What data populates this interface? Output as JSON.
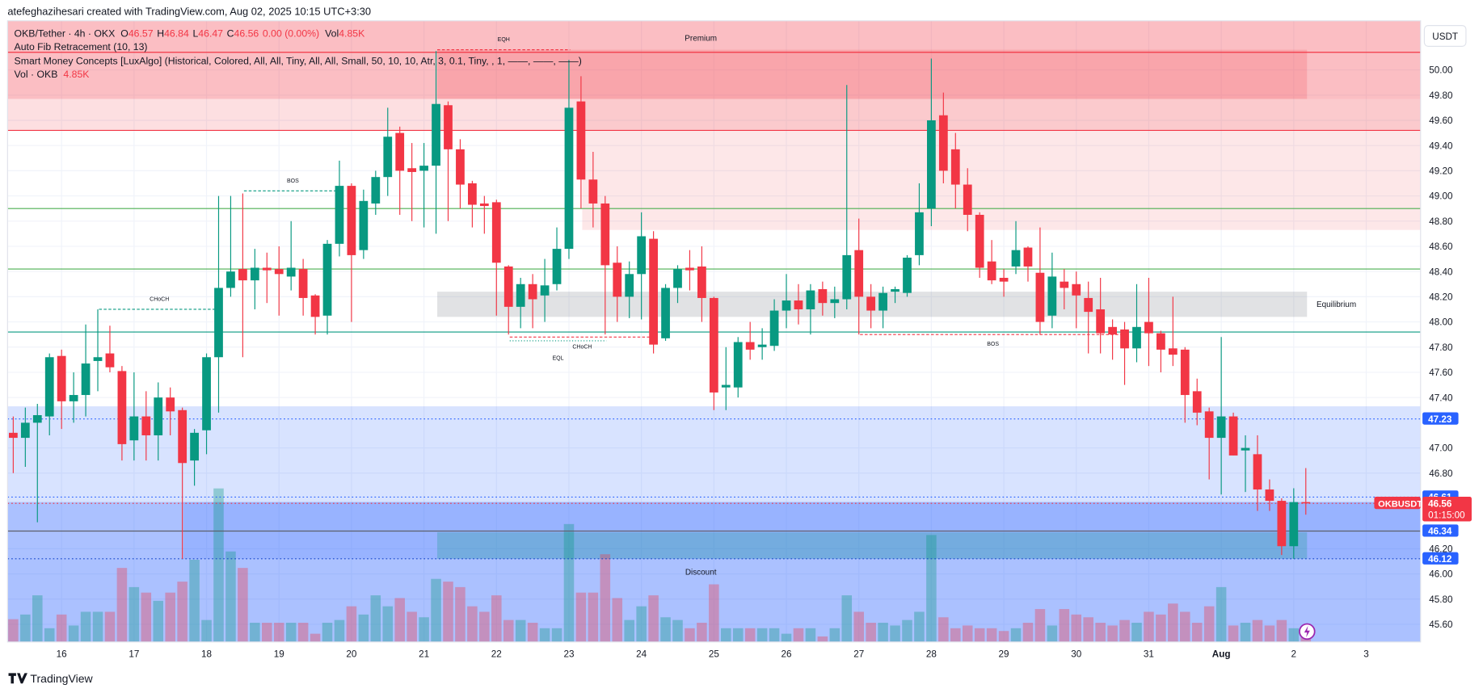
{
  "page": {
    "credit": "atefeghazihesari created with TradingView.com, Aug 02, 2025 10:15 UTC+3:30",
    "symbol": "OKB/Tether · 4h · OKX",
    "o": "O",
    "h": "H",
    "l": "L",
    "c": "C",
    "change": "0.00 (0.00%)",
    "vol": "Vol",
    "vol_value": "4.85K",
    "fib": "Auto Fib Retracement (10, 13)",
    "smc": "Smart Money Concepts [LuxAlgo] (Historical, Colored, All, All, Tiny, All, All, Small, 50, 10, 10, Atr, 3, 0.1, Tiny, , 1, ——, ——, ——)",
    "vol_indicator": "Vol · OKB",
    "currency": "USDT",
    "brand": "TradingView"
  },
  "chart_data": {
    "type": "candlestick",
    "up_color": "#089981",
    "down_color": "#f23645",
    "open": [
      47.12,
      47.08,
      47.2,
      47.25,
      47.73,
      47.37,
      47.42,
      47.69,
      47.75,
      47.61,
      47.06,
      47.25,
      47.1,
      47.4,
      47.3,
      46.9,
      47.14,
      47.72,
      48.27,
      48.42,
      48.33,
      48.43,
      48.42,
      48.36,
      48.42,
      48.21,
      48.05,
      48.62,
      49.08,
      48.57,
      48.94,
      49.15,
      49.5,
      49.22,
      49.2,
      49.24,
      49.72,
      49.37,
      49.1,
      48.94,
      48.95,
      48.44,
      48.12,
      48.3,
      48.21,
      48.3,
      48.58,
      49.75,
      49.13,
      48.94,
      48.47,
      48.2,
      48.38,
      48.66,
      47.87,
      48.27,
      48.43,
      48.44,
      48.19,
      47.48,
      47.48,
      47.84,
      47.8,
      47.81,
      48.09,
      48.17,
      48.1,
      48.26,
      48.15,
      48.18,
      48.57,
      48.2,
      48.09,
      48.24,
      48.23,
      48.53,
      48.9,
      49.64,
      49.37,
      49.09,
      48.85,
      48.48,
      48.35,
      48.44,
      48.59,
      48.39,
      48.05,
      48.32,
      48.3,
      48.19,
      48.1,
      47.96,
      47.94,
      47.79,
      48.0,
      47.91,
      47.79,
      47.78,
      47.45,
      47.29,
      47.08,
      47.25,
      46.98,
      46.95,
      46.67,
      46.58,
      46.22,
      46.57
    ],
    "high": [
      47.25,
      47.32,
      47.35,
      47.75,
      47.78,
      47.6,
      47.98,
      48.1,
      47.97,
      47.65,
      47.6,
      47.45,
      47.52,
      47.48,
      47.32,
      47.15,
      47.75,
      49.0,
      49.0,
      49.02,
      48.58,
      48.55,
      48.6,
      48.8,
      48.5,
      48.22,
      48.65,
      49.28,
      49.1,
      49.05,
      49.2,
      49.7,
      49.55,
      49.42,
      49.42,
      50.15,
      49.75,
      49.45,
      49.12,
      49.0,
      48.97,
      48.45,
      48.35,
      48.38,
      48.5,
      48.75,
      50.08,
      49.95,
      49.35,
      49.0,
      48.6,
      48.48,
      48.87,
      48.72,
      48.3,
      48.45,
      48.57,
      48.6,
      48.2,
      47.8,
      47.88,
      48.0,
      47.95,
      48.18,
      48.38,
      48.3,
      48.3,
      48.32,
      48.28,
      49.88,
      48.82,
      48.3,
      48.28,
      48.28,
      48.53,
      49.1,
      50.09,
      49.82,
      49.5,
      49.22,
      48.87,
      48.65,
      48.42,
      48.8,
      48.6,
      48.75,
      48.55,
      48.42,
      48.4,
      48.32,
      48.35,
      48.02,
      48.0,
      48.3,
      48.35,
      47.93,
      48.2,
      47.8,
      47.55,
      47.32,
      47.88,
      47.28,
      47.1,
      47.1,
      46.75,
      46.6,
      46.68,
      46.84
    ],
    "low": [
      46.8,
      46.85,
      46.41,
      47.1,
      47.15,
      47.2,
      47.25,
      47.45,
      47.6,
      46.9,
      46.9,
      46.9,
      46.9,
      47.1,
      46.12,
      46.7,
      46.95,
      47.28,
      48.2,
      47.72,
      48.1,
      48.15,
      48.05,
      48.25,
      48.05,
      47.9,
      47.9,
      48.52,
      48.0,
      48.5,
      48.85,
      49.0,
      48.85,
      48.8,
      48.75,
      48.7,
      48.8,
      48.9,
      48.75,
      48.7,
      48.05,
      47.9,
      47.95,
      47.95,
      48.0,
      48.25,
      48.5,
      48.9,
      48.75,
      47.9,
      48.0,
      48.03,
      48.02,
      47.75,
      47.85,
      48.15,
      48.25,
      48.0,
      47.3,
      47.3,
      47.4,
      47.7,
      47.7,
      47.77,
      47.95,
      47.98,
      47.9,
      48.05,
      48.03,
      48.1,
      47.9,
      47.95,
      47.95,
      48.15,
      48.2,
      48.45,
      48.76,
      49.1,
      48.9,
      48.72,
      48.35,
      48.3,
      48.2,
      48.38,
      48.32,
      47.9,
      47.95,
      48.1,
      47.95,
      47.75,
      47.75,
      47.7,
      47.5,
      47.68,
      47.65,
      47.6,
      47.65,
      47.2,
      47.18,
      46.75,
      46.63,
      46.94,
      46.65,
      46.5,
      46.5,
      46.15,
      46.12,
      46.47
    ],
    "close": [
      47.08,
      47.2,
      47.26,
      47.72,
      47.37,
      47.42,
      47.67,
      47.72,
      47.64,
      47.03,
      47.25,
      47.1,
      47.4,
      47.29,
      46.88,
      47.12,
      47.72,
      48.27,
      48.4,
      48.33,
      48.43,
      48.41,
      48.38,
      48.43,
      48.19,
      48.04,
      48.62,
      49.08,
      48.53,
      48.96,
      49.15,
      49.47,
      49.2,
      49.19,
      49.24,
      49.73,
      49.37,
      49.09,
      48.93,
      48.92,
      48.47,
      48.12,
      48.3,
      48.18,
      48.29,
      48.58,
      49.7,
      49.13,
      48.94,
      48.45,
      48.2,
      48.38,
      48.68,
      47.82,
      48.27,
      48.42,
      48.41,
      48.19,
      47.44,
      47.5,
      47.84,
      47.78,
      47.82,
      48.09,
      48.17,
      48.1,
      48.25,
      48.15,
      48.18,
      48.53,
      48.2,
      48.09,
      48.23,
      48.26,
      48.51,
      48.87,
      49.6,
      49.2,
      49.09,
      48.85,
      48.43,
      48.33,
      48.32,
      48.57,
      48.44,
      48.0,
      48.36,
      48.27,
      48.21,
      48.08,
      47.91,
      47.9,
      47.79,
      47.96,
      47.91,
      47.78,
      47.74,
      47.42,
      47.28,
      47.08,
      47.25,
      46.94,
      47.0,
      46.67,
      46.58,
      46.22,
      46.57,
      46.56
    ],
    "volume": [
      8.3,
      10,
      17,
      5,
      10,
      6,
      11,
      11,
      11,
      27,
      20,
      18,
      15,
      18,
      22,
      30,
      8,
      56,
      33,
      27,
      7,
      7,
      7,
      7,
      7,
      3,
      7,
      8,
      13,
      10,
      17,
      13,
      16,
      11,
      9,
      23,
      22,
      20,
      13,
      11,
      17,
      8,
      8,
      7,
      5,
      5,
      43,
      18,
      18,
      32,
      16,
      8,
      13,
      17,
      9,
      8,
      5,
      7,
      21,
      5,
      5,
      5,
      5,
      5,
      3,
      5,
      5,
      2,
      5,
      17,
      11,
      7,
      7,
      6,
      8,
      11,
      39,
      9,
      5,
      6,
      5,
      5,
      4,
      5,
      7,
      12,
      6,
      12,
      10,
      9,
      7,
      6,
      8,
      7,
      11,
      10,
      14,
      11,
      7,
      13,
      20,
      6,
      7,
      8,
      6,
      8,
      5,
      4.85
    ],
    "xlim": [
      -0.47,
      116.5
    ],
    "xticks": [
      {
        "value": 4,
        "label": "16"
      },
      {
        "value": 10,
        "label": "17"
      },
      {
        "value": 16,
        "label": "18"
      },
      {
        "value": 22,
        "label": "19"
      },
      {
        "value": 28,
        "label": "20"
      },
      {
        "value": 34,
        "label": "21"
      },
      {
        "value": 40,
        "label": "22"
      },
      {
        "value": 46,
        "label": "23"
      },
      {
        "value": 52,
        "label": "24"
      },
      {
        "value": 58,
        "label": "25"
      },
      {
        "value": 64,
        "label": "26"
      },
      {
        "value": 70,
        "label": "27"
      },
      {
        "value": 76,
        "label": "28"
      },
      {
        "value": 82,
        "label": "29"
      },
      {
        "value": 88,
        "label": "30"
      },
      {
        "value": 94,
        "label": "31"
      },
      {
        "value": 100,
        "label": "Aug"
      },
      {
        "value": 106,
        "label": "2"
      },
      {
        "value": 112,
        "label": "3"
      }
    ],
    "ylim": [
      45.46,
      50.39
    ],
    "yticks": [
      {
        "value": 50,
        "label": "50.00"
      },
      {
        "value": 49.8,
        "label": "49.80"
      },
      {
        "value": 49.6,
        "label": "49.60"
      },
      {
        "value": 49.4,
        "label": "49.40"
      },
      {
        "value": 49.2,
        "label": "49.20"
      },
      {
        "value": 49,
        "label": "49.00"
      },
      {
        "value": 48.8,
        "label": "48.80"
      },
      {
        "value": 48.6,
        "label": "48.60"
      },
      {
        "value": 48.4,
        "label": "48.40"
      },
      {
        "value": 48.2,
        "label": "48.20"
      },
      {
        "value": 48,
        "label": "48.00"
      },
      {
        "value": 47.8,
        "label": "47.80"
      },
      {
        "value": 47.6,
        "label": "47.60"
      },
      {
        "value": 47.4,
        "label": "47.40"
      },
      {
        "value": 47,
        "label": "47.00"
      },
      {
        "value": 46.8,
        "label": "46.80"
      },
      {
        "value": 46.2,
        "label": "46.20"
      },
      {
        "value": 46,
        "label": "46.00"
      },
      {
        "value": 45.8,
        "label": "45.80"
      },
      {
        "value": 45.6,
        "label": "45.60"
      }
    ],
    "grid": true,
    "zones": [
      {
        "label": "Premium",
        "label_pos": "top",
        "top": 50.39,
        "bottom": 49.77,
        "from": -0.47,
        "to": 116.5,
        "color": "rgba(242,54,69,0.32)",
        "text_color": "#f23645"
      },
      {
        "top": 49.77,
        "bottom": 49.52,
        "from": -0.47,
        "to": 116.5,
        "color": "rgba(242,54,69,0.16)"
      },
      {
        "top": 50.16,
        "bottom": 49.77,
        "from": 35.1,
        "to": 107.1,
        "color": "rgba(242,54,69,0.18)"
      },
      {
        "top": 49.77,
        "bottom": 48.73,
        "from": 47.1,
        "to": 116.5,
        "color": "rgba(242,54,69,0.12)"
      },
      {
        "label": "Equilibrium",
        "label_pos": "right",
        "top": 48.24,
        "bottom": 48.04,
        "from": 35.1,
        "to": 107.1,
        "color": "rgba(120,123,134,0.22)",
        "text_color": "#9598a1"
      },
      {
        "top": 47.33,
        "bottom": 45.46,
        "from": -0.47,
        "to": 116.5,
        "color": "rgba(41,98,255,0.18)"
      },
      {
        "label": "Discount",
        "label_pos": "middle",
        "top": 46.57,
        "bottom": 45.46,
        "from": -0.47,
        "to": 116.5,
        "color": "rgba(41,98,255,0.26)",
        "text_color": "#089981"
      },
      {
        "top": 46.57,
        "bottom": 46.12,
        "from": 14.1,
        "to": 116.5,
        "color": "rgba(41,98,255,0.14)"
      },
      {
        "top": 46.33,
        "bottom": 46.12,
        "from": 35.1,
        "to": 107.1,
        "color": "rgba(8,153,129,0.25)"
      }
    ],
    "levels": [
      {
        "value": 50.14,
        "color": "#f23645",
        "style": "solid"
      },
      {
        "value": 49.52,
        "color": "#f23645",
        "style": "solid"
      },
      {
        "value": 48.9,
        "color": "#4caf50",
        "style": "solid"
      },
      {
        "value": 48.42,
        "color": "#4caf50",
        "style": "solid"
      },
      {
        "value": 47.92,
        "color": "#089981",
        "style": "solid"
      },
      {
        "value": 47.23,
        "color": "#2962ff",
        "style": "dotted",
        "badge": true
      },
      {
        "value": 46.61,
        "color": "#2962ff",
        "style": "dotted",
        "badge": true
      },
      {
        "value": 46.34,
        "color": "#5d606b",
        "style": "solid",
        "badge": true,
        "badge_color": "#2962ff"
      },
      {
        "value": 46.12,
        "color": "#1848cc",
        "style": "dotted",
        "badge": true,
        "badge_color": "#2962ff"
      }
    ],
    "structures": [
      {
        "label": "BOS",
        "price": 49.04,
        "from": 19.1,
        "to": 27.2,
        "color": "#089981",
        "label_pos": "above"
      },
      {
        "label": "CHoCH",
        "price": 48.1,
        "from": 7.1,
        "to": 17.1,
        "color": "#089981",
        "label_pos": "above"
      },
      {
        "label": "EQH",
        "price": 50.16,
        "from": 35.1,
        "to": 46.1,
        "color": "#f23645",
        "label_pos": "above"
      },
      {
        "label": "EQL",
        "price": 47.85,
        "from": 41.1,
        "to": 49.1,
        "color": "#089981",
        "label_pos": "below2"
      },
      {
        "label": "CHoCH",
        "price": 47.88,
        "from": 41.1,
        "to": 53.1,
        "color": "#f23645",
        "label_pos": "below"
      },
      {
        "label": "BOS",
        "price": 47.9,
        "from": 70.1,
        "to": 92.1,
        "color": "#f23645",
        "label_pos": "below"
      }
    ],
    "current": {
      "symbol": "OKBUSDT",
      "countdown": "01:15:00"
    }
  }
}
